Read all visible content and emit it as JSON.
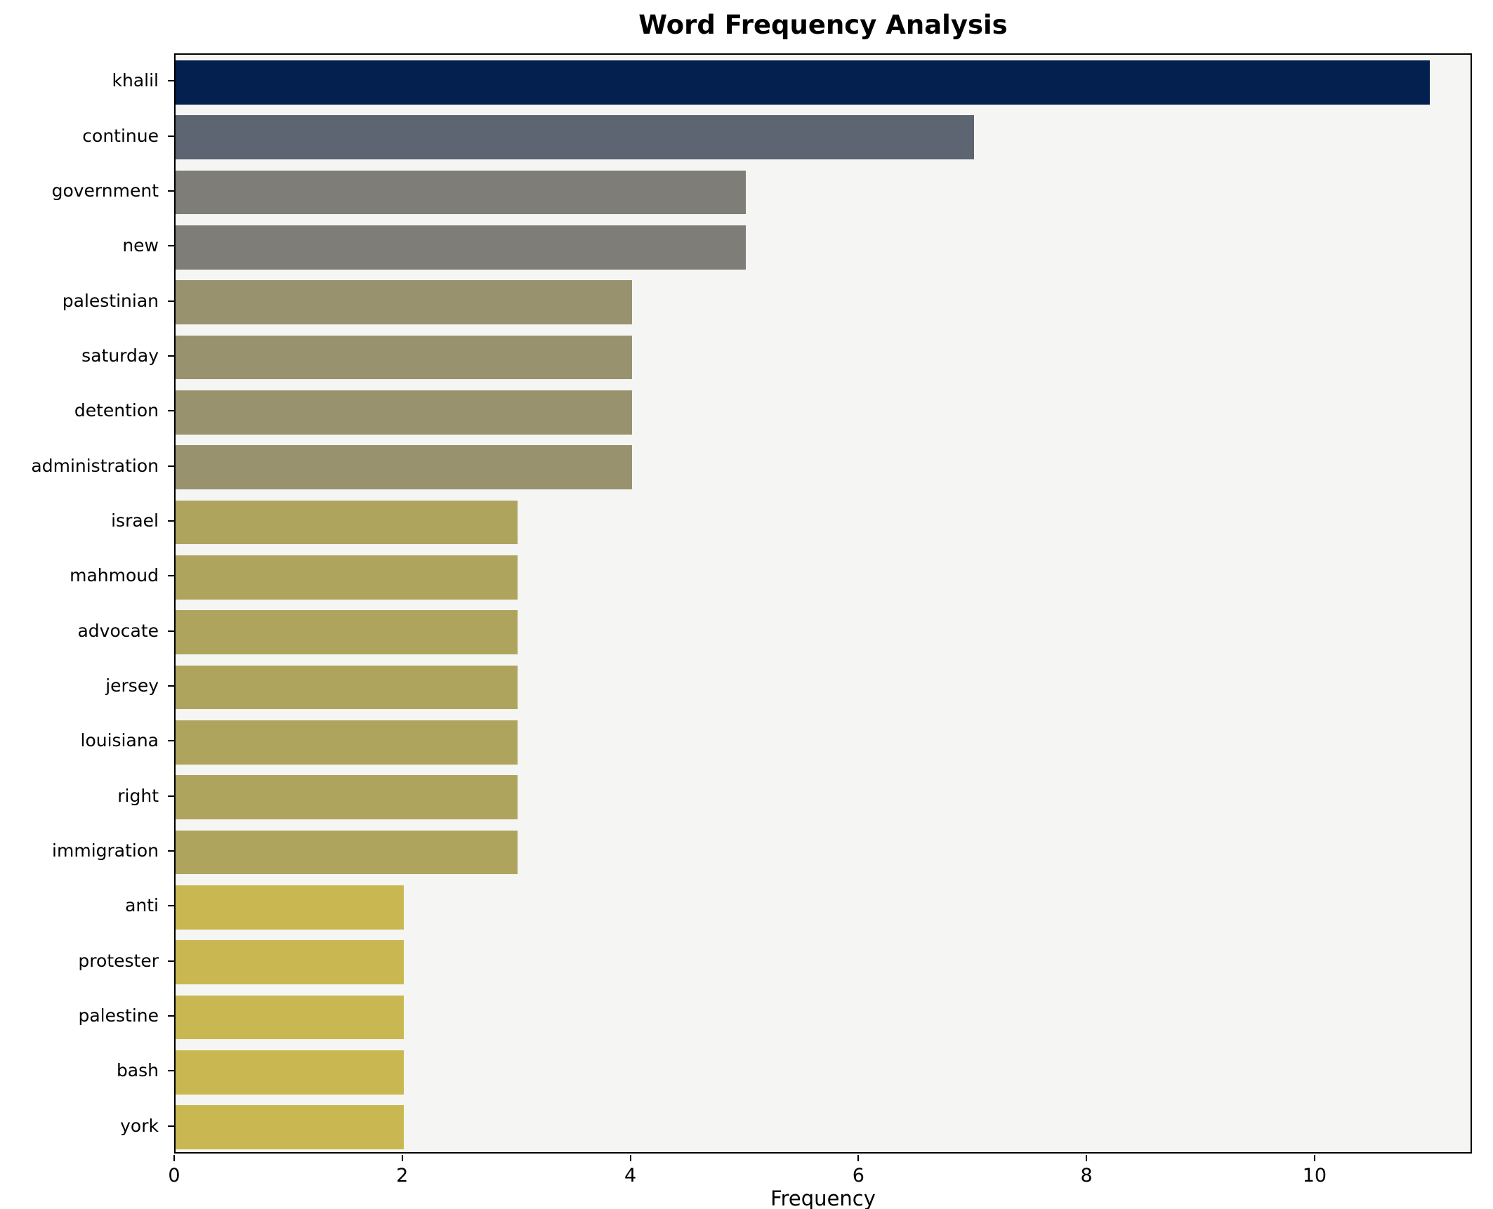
{
  "chart_data": {
    "type": "bar",
    "orientation": "horizontal",
    "title": "Word Frequency Analysis",
    "xlabel": "Frequency",
    "ylabel": "",
    "categories": [
      "khalil",
      "continue",
      "government",
      "new",
      "palestinian",
      "saturday",
      "detention",
      "administration",
      "israel",
      "mahmoud",
      "advocate",
      "jersey",
      "louisiana",
      "right",
      "immigration",
      "anti",
      "protester",
      "palestine",
      "bash",
      "york"
    ],
    "values": [
      11,
      7,
      5,
      5,
      4,
      4,
      4,
      4,
      3,
      3,
      3,
      3,
      3,
      3,
      3,
      2,
      2,
      2,
      2,
      2
    ],
    "bar_colors": [
      "#04204e",
      "#5d6472",
      "#7e7d78",
      "#7e7d78",
      "#98926f",
      "#98926f",
      "#98926f",
      "#98926f",
      "#aea45e",
      "#aea45e",
      "#aea45e",
      "#aea45e",
      "#aea45e",
      "#aea45e",
      "#aea45e",
      "#c9b851",
      "#c9b851",
      "#c9b851",
      "#c9b851",
      "#c9b851"
    ],
    "xlim": [
      0,
      11.38
    ],
    "xticks": [
      0,
      2,
      4,
      6,
      8,
      10
    ],
    "grid": false,
    "legend_position": "none",
    "plot_background": "#f5f5f3",
    "figure_background": "#ffffff"
  }
}
